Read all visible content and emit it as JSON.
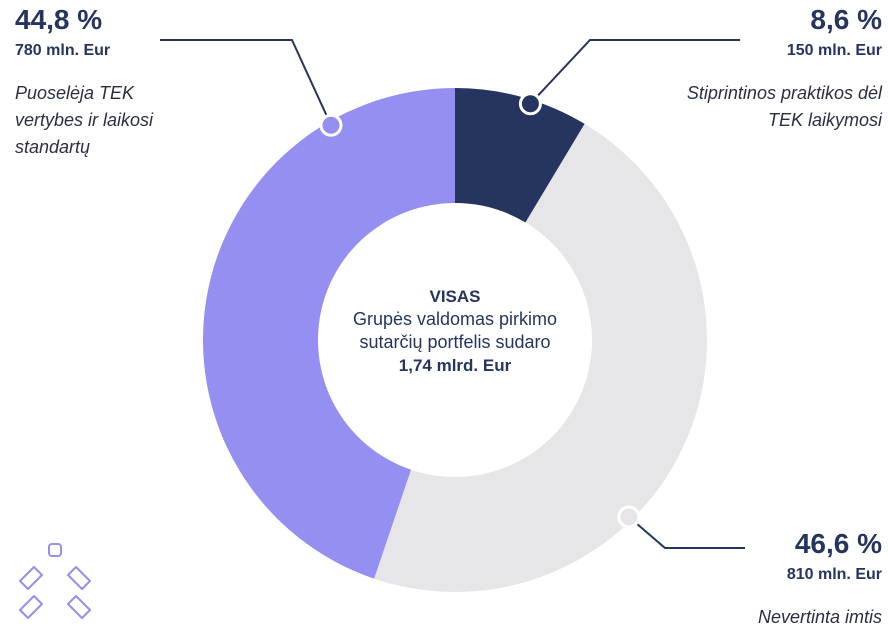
{
  "chart_data": {
    "type": "donut",
    "categories": [
      "Stiprintinos praktikos dėl TEK laikymosi",
      "Nevertinta imtis",
      "Puoselėja TEK vertybes ir laikosi standartų"
    ],
    "values": [
      8.6,
      46.6,
      44.8
    ],
    "value_labels": [
      "8,6 %",
      "46,6 %",
      "44,8 %"
    ],
    "amounts": [
      "150 mln. Eur",
      "810 mln. Eur",
      "780 mln. Eur"
    ],
    "colors": [
      "#253560",
      "#e6e6e8",
      "#948ff0"
    ],
    "center_title": "VISAS",
    "center_text": "Grupės valdomas pirkimo sutarčių portfelis sudaro",
    "center_total": "1,74 mlrd. Eur"
  }
}
